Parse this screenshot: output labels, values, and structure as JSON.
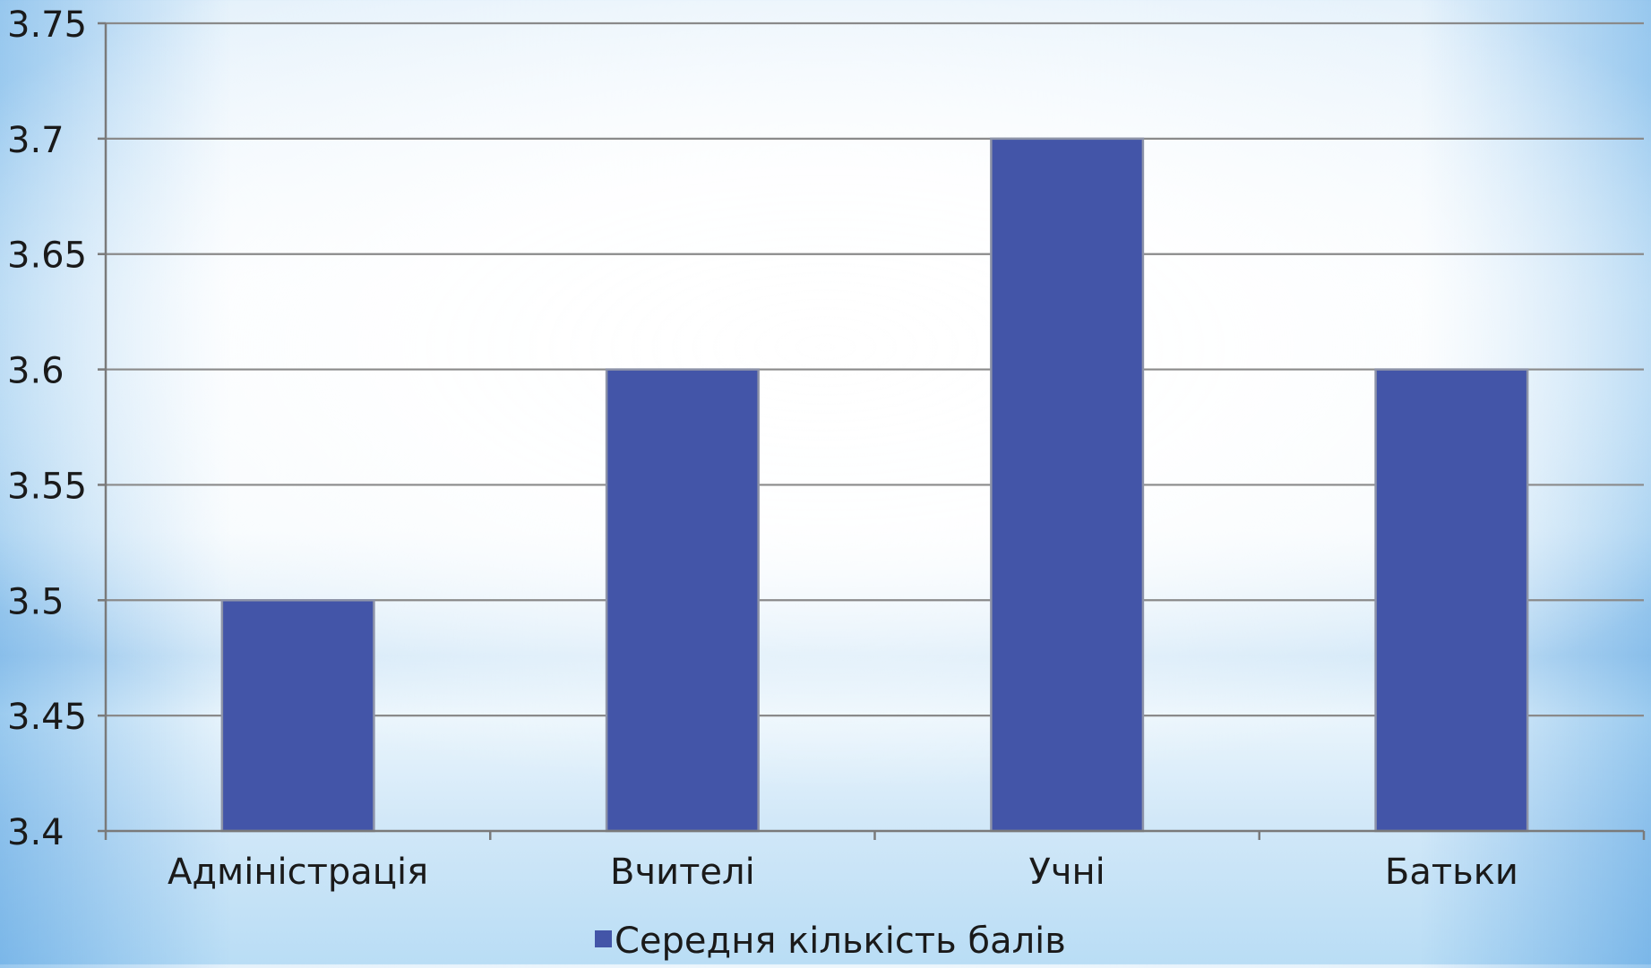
{
  "chart_data": {
    "type": "bar",
    "categories": [
      "Адміністрація",
      "Вчителі",
      "Учні",
      "Батьки"
    ],
    "series": [
      {
        "name": "Середня кількість балів",
        "values": [
          3.5,
          3.6,
          3.7,
          3.6
        ],
        "color": "#4355a8"
      }
    ],
    "yticks": [
      "3.4",
      "3.45",
      "3.5",
      "3.55",
      "3.6",
      "3.65",
      "3.7",
      "3.75"
    ],
    "ylim": [
      3.4,
      3.75
    ],
    "grid": true,
    "legend_position": "bottom",
    "gridline_color": "#8a8a8a",
    "axis_color": "#7a7a7a"
  }
}
